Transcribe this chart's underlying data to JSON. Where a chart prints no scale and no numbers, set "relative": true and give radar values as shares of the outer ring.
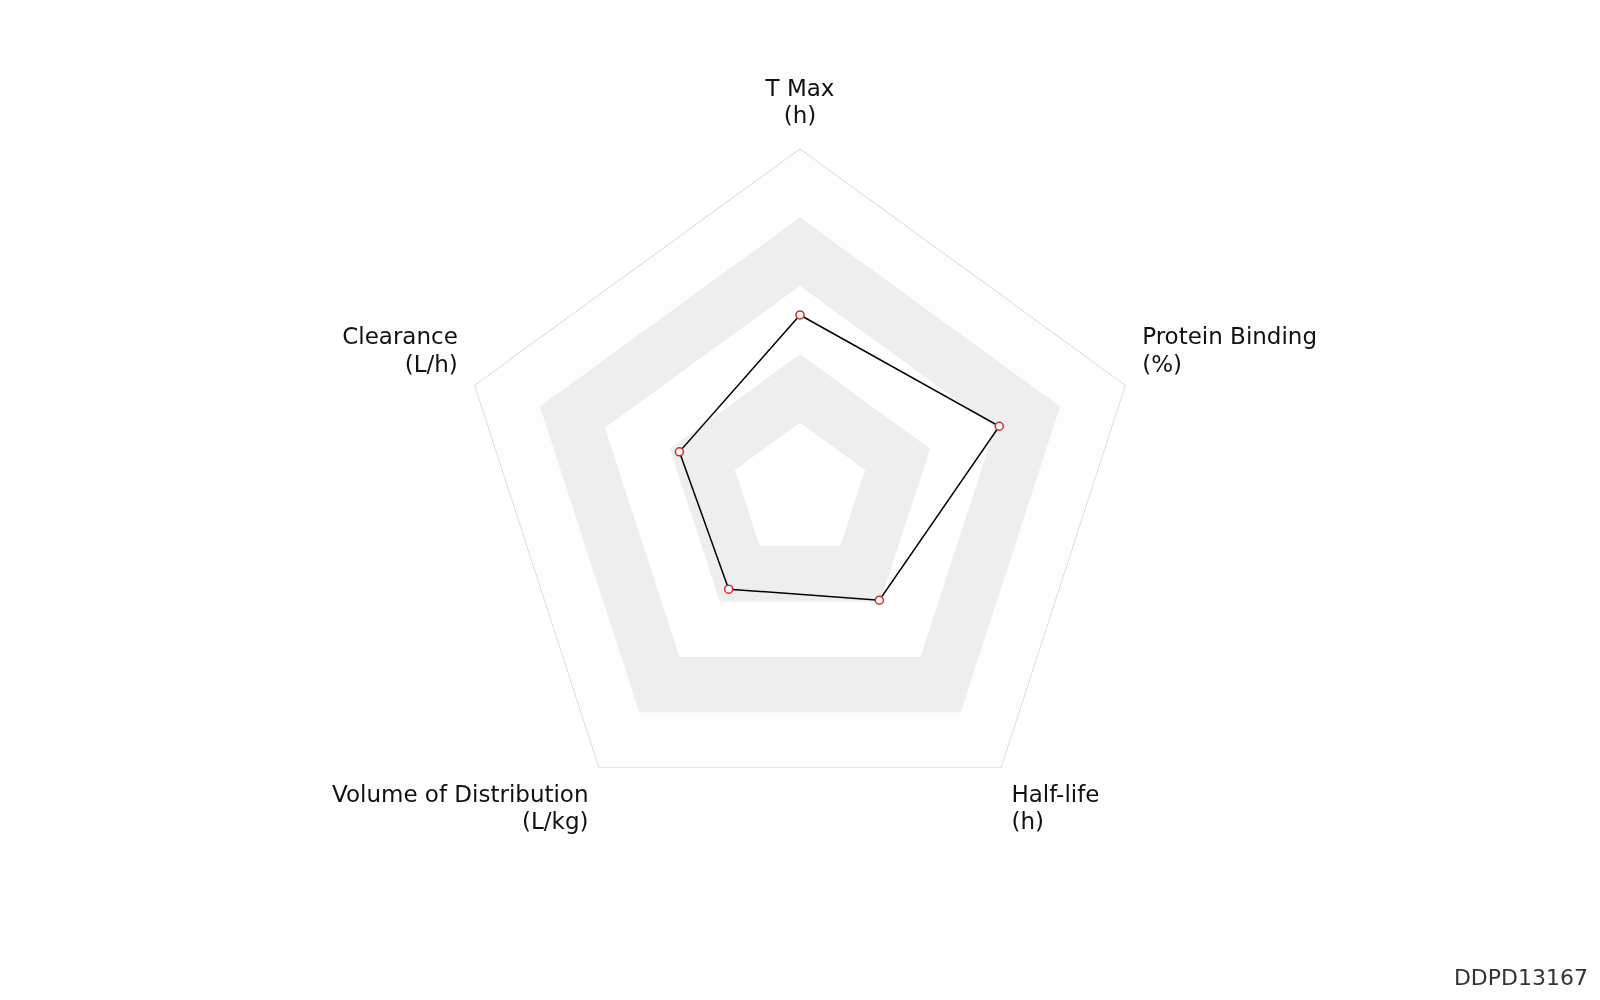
{
  "chart_data": {
    "type": "radar",
    "relative": true,
    "grid": true,
    "legend": false,
    "marker": "circle",
    "categories": [
      "T Max\n(h)",
      "Protein Binding\n(%)",
      "Half-life\n(h)",
      "Volume of Distribution\n(L/kg)",
      "Clearance\n(L/h)"
    ],
    "series": [
      {
        "color": "#000000",
        "values": [
          0.515,
          0.613,
          0.395,
          0.355,
          0.371
        ]
      }
    ],
    "annotations": [
      "DDPD13167"
    ]
  }
}
